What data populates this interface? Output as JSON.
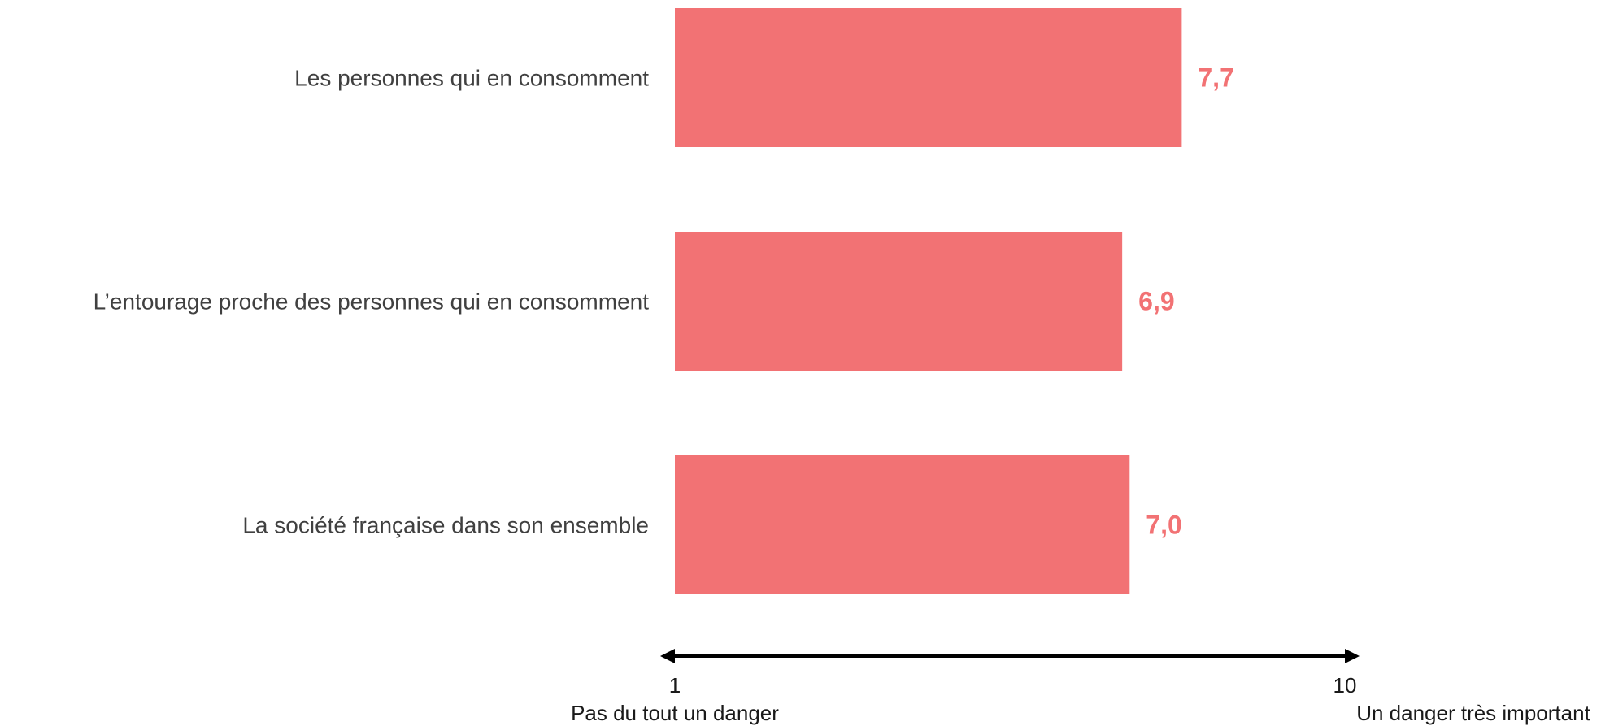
{
  "chart_data": {
    "type": "bar",
    "orientation": "horizontal",
    "categories": [
      "Les personnes qui en consomment",
      "L’entourage proche des personnes qui en consomment",
      "La société française dans son ensemble"
    ],
    "values": [
      7.7,
      6.9,
      7.0
    ],
    "value_labels": [
      "7,7",
      "6,9",
      "7,0"
    ],
    "xlim": [
      1,
      10
    ],
    "axis": {
      "min_label": "1",
      "max_label": "10",
      "min_caption": "Pas du tout un danger",
      "max_caption": "Un danger très important"
    },
    "grid": false,
    "legend": "none",
    "bar_color": "#f27274",
    "label_color": "#f27274"
  }
}
